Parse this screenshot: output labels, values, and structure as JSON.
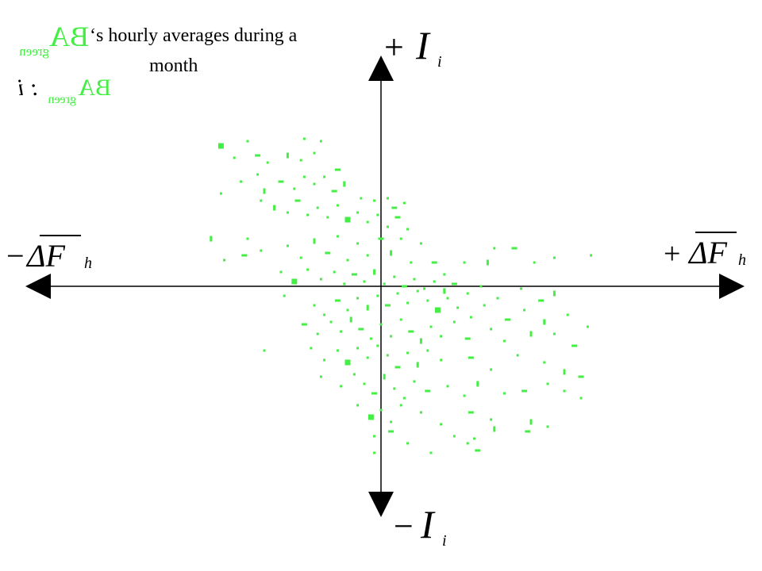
{
  "title": {
    "line1_suffix": "‘s hourly averages during a",
    "line2": "month",
    "series_symbol": "BA",
    "series_subscript": "green",
    "legend_suffix": ": i",
    "series_color": "#44ee44"
  },
  "axes": {
    "x_pos_label": {
      "sign": "+",
      "symbol": "ΔF",
      "subscript": "h"
    },
    "x_neg_label": {
      "sign": "−",
      "symbol": "ΔF",
      "subscript": "h"
    },
    "y_pos_label": {
      "sign": "+",
      "symbol": "I",
      "subscript": "i"
    },
    "y_neg_label": {
      "sign": "−",
      "symbol": "I",
      "subscript": "i"
    },
    "axis_color": "#000000"
  },
  "chart_data": {
    "type": "scatter",
    "title": "BA_green ‘s hourly averages during a month",
    "xlabel": "ΔF_h",
    "ylabel": "I_i",
    "xlim": [
      -1,
      1
    ],
    "ylim": [
      -1,
      1
    ],
    "grid": false,
    "legend": "top-left",
    "series": [
      {
        "name": "BA_green : i",
        "color": "#44ee44",
        "points": [
          [
            -0.48,
            0.59
          ],
          [
            -0.4,
            0.61
          ],
          [
            -0.23,
            0.62
          ],
          [
            -0.18,
            0.61
          ],
          [
            -0.44,
            0.54
          ],
          [
            -0.37,
            0.55
          ],
          [
            -0.34,
            0.52
          ],
          [
            -0.28,
            0.55
          ],
          [
            -0.24,
            0.53
          ],
          [
            -0.2,
            0.56
          ],
          [
            -0.13,
            0.49
          ],
          [
            -0.48,
            0.39
          ],
          [
            -0.42,
            0.44
          ],
          [
            -0.37,
            0.47
          ],
          [
            -0.35,
            0.4
          ],
          [
            -0.3,
            0.44
          ],
          [
            -0.26,
            0.41
          ],
          [
            -0.23,
            0.46
          ],
          [
            -0.2,
            0.43
          ],
          [
            -0.17,
            0.46
          ],
          [
            -0.14,
            0.4
          ],
          [
            -0.11,
            0.43
          ],
          [
            -0.06,
            0.37
          ],
          [
            -0.02,
            0.36
          ],
          [
            0.02,
            0.37
          ],
          [
            0.04,
            0.33
          ],
          [
            0.07,
            0.35
          ],
          [
            -0.36,
            0.36
          ],
          [
            -0.32,
            0.33
          ],
          [
            -0.28,
            0.31
          ],
          [
            -0.25,
            0.36
          ],
          [
            -0.22,
            0.3
          ],
          [
            -0.19,
            0.33
          ],
          [
            -0.16,
            0.29
          ],
          [
            -0.13,
            0.34
          ],
          [
            -0.1,
            0.28
          ],
          [
            -0.07,
            0.31
          ],
          [
            -0.04,
            0.27
          ],
          [
            -0.01,
            0.3
          ],
          [
            0.02,
            0.25
          ],
          [
            0.05,
            0.29
          ],
          [
            0.08,
            0.24
          ],
          [
            -0.51,
            0.2
          ],
          [
            -0.4,
            0.2
          ],
          [
            -0.47,
            0.11
          ],
          [
            -0.41,
            0.13
          ],
          [
            -0.36,
            0.15
          ],
          [
            -0.28,
            0.17
          ],
          [
            -0.24,
            0.12
          ],
          [
            -0.2,
            0.19
          ],
          [
            -0.16,
            0.14
          ],
          [
            -0.13,
            0.21
          ],
          [
            -0.1,
            0.11
          ],
          [
            -0.07,
            0.18
          ],
          [
            -0.04,
            0.13
          ],
          [
            0.0,
            0.2
          ],
          [
            0.03,
            0.14
          ],
          [
            0.06,
            0.2
          ],
          [
            0.09,
            0.1
          ],
          [
            0.12,
            0.18
          ],
          [
            0.16,
            0.1
          ],
          [
            0.19,
            0.05
          ],
          [
            0.25,
            0.1
          ],
          [
            0.32,
            0.1
          ],
          [
            0.34,
            0.16
          ],
          [
            0.4,
            0.16
          ],
          [
            0.46,
            0.1
          ],
          [
            0.52,
            0.12
          ],
          [
            0.63,
            0.13
          ],
          [
            -0.3,
            0.06
          ],
          [
            -0.26,
            0.02
          ],
          [
            -0.22,
            0.07
          ],
          [
            -0.18,
            0.03
          ],
          [
            -0.14,
            0.06
          ],
          [
            -0.11,
            0.01
          ],
          [
            -0.08,
            0.05
          ],
          [
            -0.05,
            0.02
          ],
          [
            -0.02,
            0.06
          ],
          [
            0.01,
            0.01
          ],
          [
            0.04,
            0.04
          ],
          [
            0.07,
            0.0
          ],
          [
            0.1,
            0.03
          ],
          [
            0.13,
            -0.01
          ],
          [
            0.16,
            0.02
          ],
          [
            0.19,
            -0.02
          ],
          [
            0.22,
            0.01
          ],
          [
            0.26,
            -0.03
          ],
          [
            0.3,
            0.0
          ],
          [
            0.35,
            -0.05
          ],
          [
            0.42,
            -0.01
          ],
          [
            0.48,
            -0.06
          ],
          [
            0.52,
            -0.03
          ],
          [
            -0.29,
            -0.04
          ],
          [
            -0.2,
            -0.08
          ],
          [
            -0.17,
            -0.12
          ],
          [
            -0.13,
            -0.06
          ],
          [
            -0.1,
            -0.1
          ],
          [
            -0.07,
            -0.05
          ],
          [
            -0.04,
            -0.09
          ],
          [
            -0.01,
            -0.04
          ],
          [
            0.02,
            -0.08
          ],
          [
            0.05,
            -0.03
          ],
          [
            0.08,
            -0.07
          ],
          [
            0.11,
            -0.02
          ],
          [
            0.14,
            -0.06
          ],
          [
            0.17,
            -0.1
          ],
          [
            0.2,
            -0.05
          ],
          [
            0.23,
            -0.09
          ],
          [
            0.27,
            -0.13
          ],
          [
            0.31,
            -0.08
          ],
          [
            0.38,
            -0.14
          ],
          [
            0.43,
            -0.1
          ],
          [
            0.49,
            -0.15
          ],
          [
            0.56,
            -0.12
          ],
          [
            0.62,
            -0.17
          ],
          [
            -0.23,
            -0.16
          ],
          [
            -0.19,
            -0.2
          ],
          [
            -0.15,
            -0.15
          ],
          [
            -0.12,
            -0.19
          ],
          [
            -0.09,
            -0.14
          ],
          [
            -0.06,
            -0.18
          ],
          [
            -0.03,
            -0.22
          ],
          [
            0.0,
            -0.16
          ],
          [
            0.03,
            -0.21
          ],
          [
            0.06,
            -0.14
          ],
          [
            0.09,
            -0.19
          ],
          [
            0.12,
            -0.23
          ],
          [
            0.15,
            -0.17
          ],
          [
            0.18,
            -0.21
          ],
          [
            0.22,
            -0.15
          ],
          [
            0.26,
            -0.22
          ],
          [
            0.33,
            -0.18
          ],
          [
            0.37,
            -0.23
          ],
          [
            0.45,
            -0.2
          ],
          [
            0.52,
            -0.2
          ],
          [
            0.58,
            -0.25
          ],
          [
            -0.35,
            -0.27
          ],
          [
            -0.21,
            -0.26
          ],
          [
            -0.17,
            -0.31
          ],
          [
            -0.13,
            -0.27
          ],
          [
            -0.1,
            -0.32
          ],
          [
            -0.07,
            -0.26
          ],
          [
            -0.04,
            -0.3
          ],
          [
            -0.01,
            -0.25
          ],
          [
            0.02,
            -0.29
          ],
          [
            0.05,
            -0.34
          ],
          [
            0.08,
            -0.28
          ],
          [
            0.11,
            -0.33
          ],
          [
            0.14,
            -0.27
          ],
          [
            0.18,
            -0.31
          ],
          [
            0.27,
            -0.3
          ],
          [
            0.33,
            -0.35
          ],
          [
            0.41,
            -0.29
          ],
          [
            0.49,
            -0.32
          ],
          [
            0.55,
            -0.36
          ],
          [
            0.6,
            -0.38
          ],
          [
            -0.18,
            -0.38
          ],
          [
            -0.12,
            -0.42
          ],
          [
            -0.08,
            -0.37
          ],
          [
            -0.05,
            -0.41
          ],
          [
            -0.02,
            -0.45
          ],
          [
            0.01,
            -0.38
          ],
          [
            0.04,
            -0.43
          ],
          [
            0.07,
            -0.47
          ],
          [
            0.1,
            -0.4
          ],
          [
            0.14,
            -0.44
          ],
          [
            0.2,
            -0.42
          ],
          [
            0.25,
            -0.46
          ],
          [
            0.29,
            -0.41
          ],
          [
            0.37,
            -0.45
          ],
          [
            0.43,
            -0.44
          ],
          [
            0.5,
            -0.41
          ],
          [
            0.55,
            -0.44
          ],
          [
            0.6,
            -0.47
          ],
          [
            -0.07,
            -0.5
          ],
          [
            -0.03,
            -0.55
          ],
          [
            0.0,
            -0.52
          ],
          [
            0.03,
            -0.57
          ],
          [
            0.06,
            -0.5
          ],
          [
            0.12,
            -0.53
          ],
          [
            0.27,
            -0.53
          ],
          [
            0.33,
            -0.56
          ],
          [
            0.45,
            -0.57
          ],
          [
            0.5,
            -0.59
          ],
          [
            -0.02,
            -0.63
          ],
          [
            0.03,
            -0.61
          ],
          [
            0.18,
            -0.58
          ],
          [
            0.22,
            -0.63
          ],
          [
            0.28,
            -0.64
          ],
          [
            0.34,
            -0.6
          ],
          [
            0.44,
            -0.61
          ],
          [
            -0.02,
            -0.7
          ],
          [
            0.08,
            -0.66
          ],
          [
            0.15,
            -0.7
          ],
          [
            0.26,
            -0.66
          ],
          [
            0.29,
            -0.69
          ]
        ]
      }
    ]
  }
}
